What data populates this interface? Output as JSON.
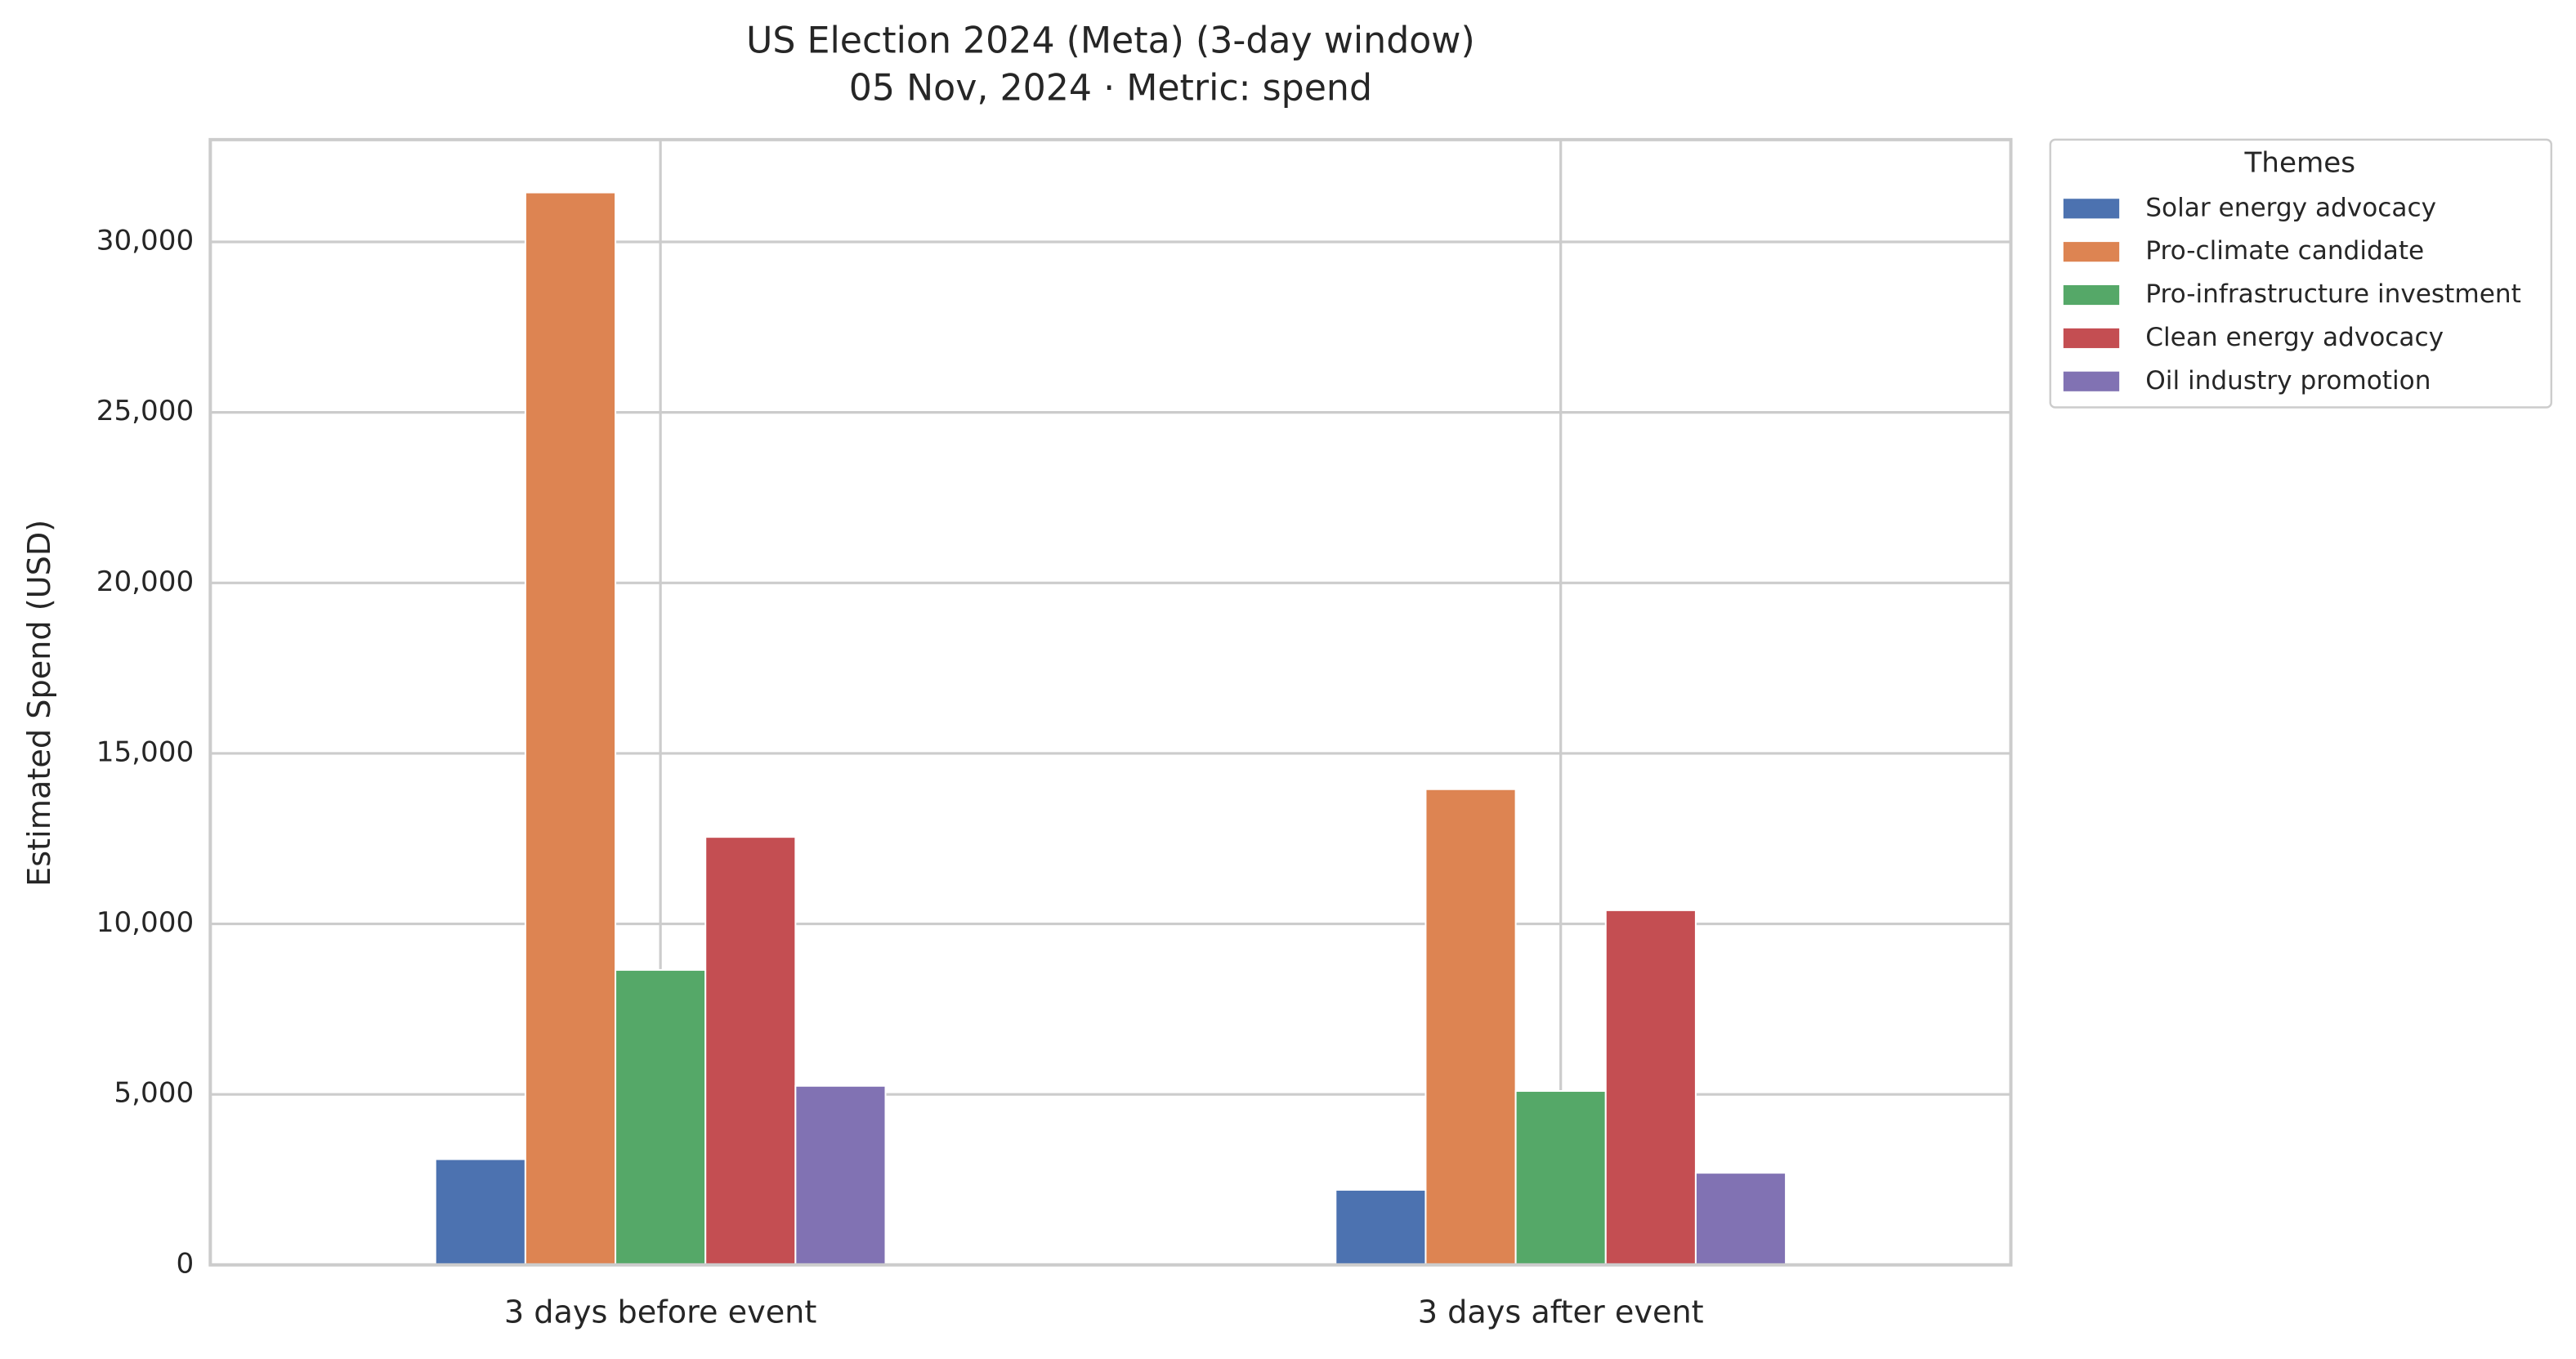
{
  "chart_data": {
    "type": "bar",
    "title": "US Election 2024 (Meta) (3-day window)",
    "subtitle": "05 Nov, 2024 · Metric: spend",
    "y_label": "Estimated Spend (USD)",
    "categories": [
      "3 days before event",
      "3 days after event"
    ],
    "series": [
      {
        "name": "Solar energy advocacy",
        "color": "#4c72b0",
        "values": [
          3100,
          2200
        ]
      },
      {
        "name": "Pro-climate candidate",
        "color": "#dd8452",
        "values": [
          31450,
          13950
        ]
      },
      {
        "name": "Pro-infrastructure investment",
        "color": "#55a868",
        "values": [
          8650,
          5100
        ]
      },
      {
        "name": "Clean energy advocacy",
        "color": "#c44e52",
        "values": [
          12550,
          10400
        ]
      },
      {
        "name": "Oil industry promotion",
        "color": "#8172b3",
        "values": [
          5250,
          2700
        ]
      }
    ],
    "legend_title": "Themes",
    "legend_position": "outside upper right",
    "ylim": [
      0,
      33000
    ],
    "yticks": [
      0,
      {
        "value": 5000,
        "label": "5,000"
      },
      {
        "value": 10000,
        "label": "10,000"
      },
      {
        "value": 15000,
        "label": "15,000"
      },
      {
        "value": 20000,
        "label": "20,000"
      },
      {
        "value": 25000,
        "label": "25,000"
      },
      {
        "value": 30000,
        "label": "30,000"
      }
    ],
    "grid": true
  }
}
